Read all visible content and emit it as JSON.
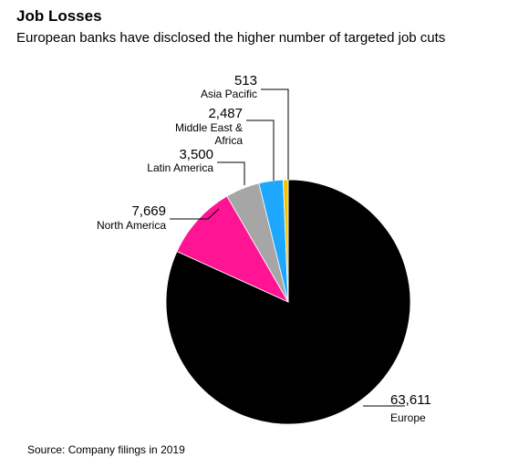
{
  "chart_data": {
    "type": "pie",
    "title": "Job Losses",
    "subtitle": "European banks have disclosed the higher number of targeted job cuts",
    "source": "Source: Company filings in 2019",
    "slices": [
      {
        "label": "Europe",
        "value": 63611,
        "value_text": "63,611",
        "color": "#000000"
      },
      {
        "label": "North America",
        "value": 7669,
        "value_text": "7,669",
        "color": "#ff1493"
      },
      {
        "label": "Latin America",
        "value": 3500,
        "value_text": "3,500",
        "color": "#a6a6a6"
      },
      {
        "label": "Middle East & Africa",
        "label_lines": [
          "Middle East &",
          "Africa"
        ],
        "value": 2487,
        "value_text": "2,487",
        "color": "#1ea7ff"
      },
      {
        "label": "Asia Pacific",
        "value": 513,
        "value_text": "513",
        "color": "#f2c300"
      }
    ]
  }
}
